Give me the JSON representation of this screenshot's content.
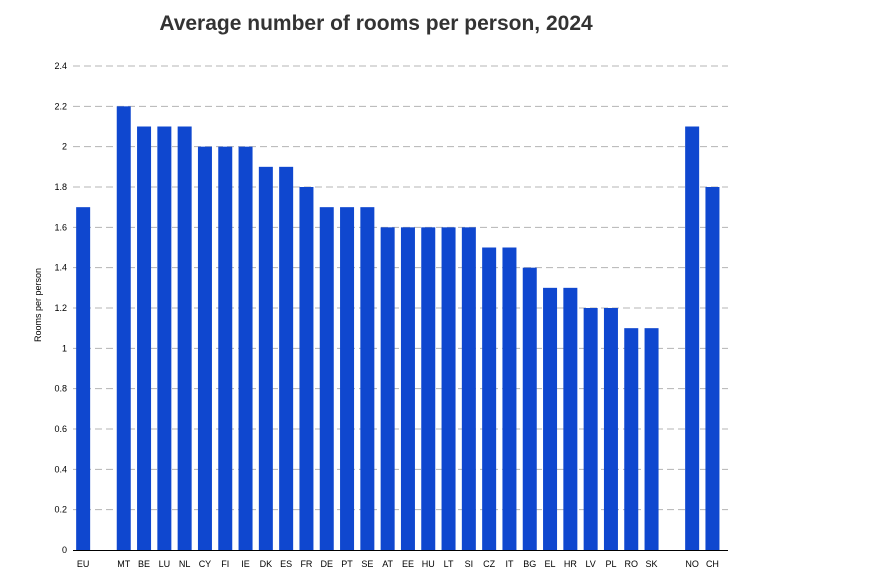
{
  "chart_data": {
    "type": "bar",
    "title": "Average number of rooms per person, 2024",
    "xlabel": "",
    "ylabel": "Rooms per person",
    "ylim": [
      0,
      2.4
    ],
    "yticks": [
      "0",
      "0.2",
      "0.4",
      "0.6",
      "0.8",
      "1",
      "1.2",
      "1.4",
      "1.6",
      "1.8",
      "2",
      "2.2",
      "2.4"
    ],
    "grid": true,
    "categories": [
      "EU",
      "MT",
      "BE",
      "LU",
      "NL",
      "CY",
      "FI",
      "IE",
      "DK",
      "ES",
      "FR",
      "DE",
      "PT",
      "SE",
      "AT",
      "EE",
      "HU",
      "LT",
      "SI",
      "CZ",
      "IT",
      "BG",
      "EL",
      "HR",
      "LV",
      "PL",
      "RO",
      "SK",
      "NO",
      "CH"
    ],
    "values": [
      1.7,
      2.2,
      2.1,
      2.1,
      2.1,
      2.0,
      2.0,
      2.0,
      1.9,
      1.9,
      1.8,
      1.7,
      1.7,
      1.7,
      1.6,
      1.6,
      1.6,
      1.6,
      1.6,
      1.5,
      1.5,
      1.4,
      1.3,
      1.3,
      1.2,
      1.2,
      1.1,
      1.1,
      2.1,
      1.8
    ],
    "bar_color": "#0f47cf",
    "grid_color": "#b4b4b4",
    "axis_color": "#000000"
  }
}
